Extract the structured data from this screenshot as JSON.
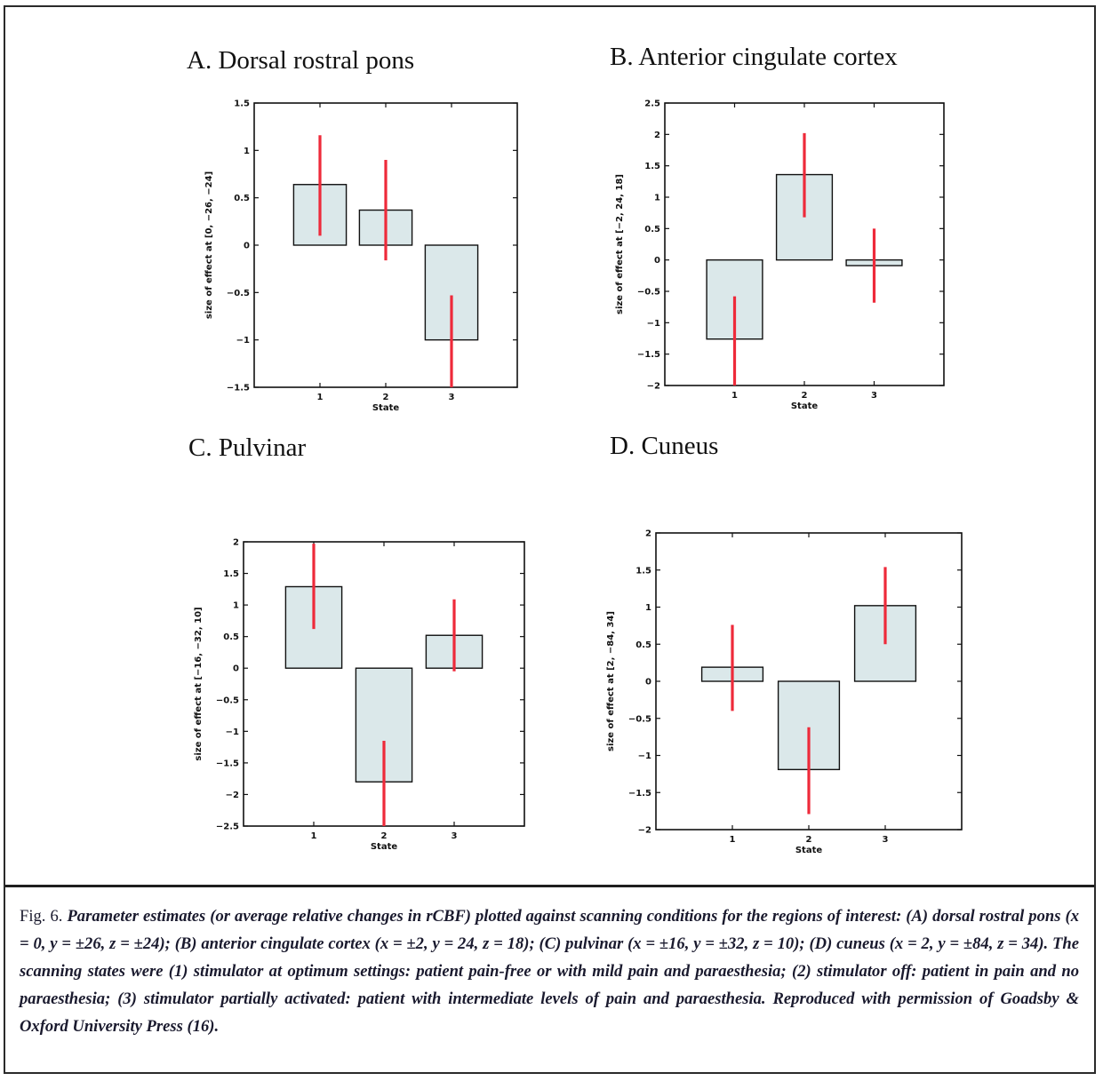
{
  "panels": [
    {
      "id": "A",
      "title": "A. Dorsal rostral pons",
      "chart_data": {
        "type": "bar",
        "categories": [
          "1",
          "2",
          "3"
        ],
        "values": [
          0.64,
          0.37,
          -1.0
        ],
        "error_low": [
          0.1,
          -0.16,
          -1.5
        ],
        "error_high": [
          1.16,
          0.9,
          -0.53
        ],
        "xlabel": "State",
        "ylabel": "size of effect at [0, −26, −24]",
        "ylim": [
          -1.5,
          1.5
        ],
        "yticks": [
          1.5,
          1,
          0.5,
          0,
          -0.5,
          -1,
          -1.5
        ],
        "ytick_labels": [
          "1.5",
          "1",
          "0.5",
          "0",
          "−0.5",
          "−1",
          "−1.5"
        ]
      }
    },
    {
      "id": "B",
      "title": "B. Anterior cingulate cortex",
      "chart_data": {
        "type": "bar",
        "categories": [
          "1",
          "2",
          "3"
        ],
        "values": [
          -1.26,
          1.36,
          -0.09
        ],
        "error_low": [
          -2.0,
          0.68,
          -0.68
        ],
        "error_high": [
          -0.58,
          2.02,
          0.5
        ],
        "xlabel": "State",
        "ylabel": "size of effect at [−2, 24, 18]",
        "ylim": [
          -2,
          2.5
        ],
        "yticks": [
          2.5,
          2,
          1.5,
          1,
          0.5,
          0,
          -0.5,
          -1,
          -1.5,
          -2
        ],
        "ytick_labels": [
          "2.5",
          "2",
          "1.5",
          "1",
          "0.5",
          "0",
          "−0.5",
          "−1",
          "−1.5",
          "−2"
        ]
      }
    },
    {
      "id": "C",
      "title": "C. Pulvinar",
      "chart_data": {
        "type": "bar",
        "categories": [
          "1",
          "2",
          "3"
        ],
        "values": [
          1.29,
          -1.8,
          0.52
        ],
        "error_low": [
          0.62,
          -2.5,
          -0.05
        ],
        "error_high": [
          1.97,
          -1.15,
          1.09
        ],
        "xlabel": "State",
        "ylabel": "size of effect at [−16, −32, 10]",
        "ylim": [
          -2.5,
          2
        ],
        "yticks": [
          2,
          1.5,
          1,
          0.5,
          0,
          -0.5,
          -1,
          -1.5,
          -2,
          -2.5
        ],
        "ytick_labels": [
          "2",
          "1.5",
          "1",
          "0.5",
          "0",
          "−0.5",
          "−1",
          "−1.5",
          "−2",
          "−2.5"
        ]
      }
    },
    {
      "id": "D",
      "title": "D. Cuneus",
      "chart_data": {
        "type": "bar",
        "categories": [
          "1",
          "2",
          "3"
        ],
        "values": [
          0.19,
          -1.19,
          1.02
        ],
        "error_low": [
          -0.4,
          -1.79,
          0.5
        ],
        "error_high": [
          0.76,
          -0.62,
          1.54
        ],
        "xlabel": "State",
        "ylabel": "size of effect at [2, −84, 34]",
        "ylim": [
          -2,
          2
        ],
        "yticks": [
          2,
          1.5,
          1,
          0.5,
          0,
          -0.5,
          -1,
          -1.5,
          -2
        ],
        "ytick_labels": [
          "2",
          "1.5",
          "1",
          "0.5",
          "0",
          "−0.5",
          "−1",
          "−1.5",
          "−2"
        ]
      }
    }
  ],
  "colors": {
    "bar_fill": "#dbe8ea",
    "bar_stroke": "#111111",
    "error_bar": "#ee2a3a",
    "axis": "#111111",
    "caption_text": "#1a1a2e"
  },
  "caption": {
    "label": "Fig. 6.",
    "text": "Parameter estimates (or average relative changes in rCBF) plotted against scanning conditions for the regions of interest: (A) dorsal rostral pons (x = 0, y = ±26, z = ±24); (B) anterior cingulate cortex (x = ±2, y = 24, z = 18); (C) pulvinar (x = ±16, y = ±32, z = 10); (D) cuneus (x = 2, y = ±84, z = 34). The scanning states were (1) stimulator at optimum settings: patient pain-free or with mild pain and paraesthesia; (2) stimulator off: patient in pain and no paraesthesia; (3) stimulator partially activated: patient with intermediate levels of pain and paraesthesia. Reproduced with permission of Goadsby & Oxford University Press (16)."
  }
}
